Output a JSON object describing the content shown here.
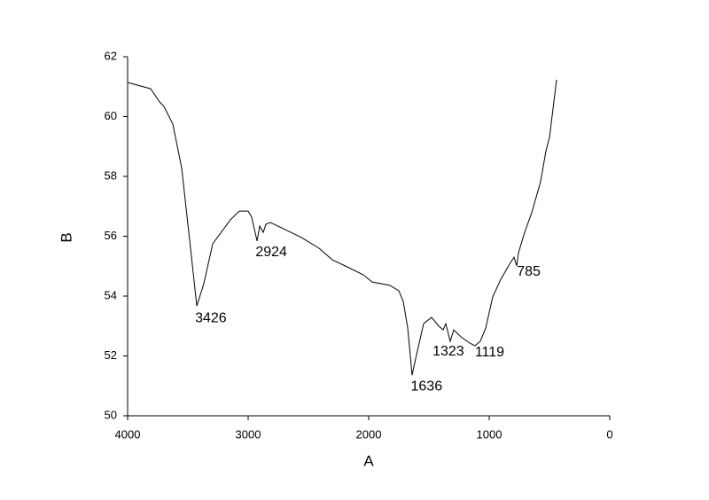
{
  "chart_data": {
    "type": "line",
    "x_label": "A",
    "y_label": "B",
    "xlim": [
      4000,
      0
    ],
    "xticks": [
      4000,
      3000,
      2000,
      1000,
      0
    ],
    "ylim": [
      50,
      62
    ],
    "yticks": [
      50,
      52,
      54,
      56,
      58,
      60,
      62
    ],
    "series": [
      {
        "color": "#000000",
        "x": [
          4000,
          3809,
          3735,
          3699,
          3625,
          3551,
          3478,
          3426,
          3368,
          3294,
          3147,
          3074,
          3000,
          2971,
          2926,
          2904,
          2875,
          2853,
          2816,
          2706,
          2559,
          2412,
          2301,
          2191,
          2044,
          1971,
          1824,
          1750,
          1713,
          1676,
          1640,
          1603,
          1544,
          1478,
          1419,
          1382,
          1360,
          1324,
          1294,
          1235,
          1162,
          1118,
          1074,
          1029,
          971,
          904,
          831,
          794,
          772,
          757,
          706,
          647,
          574,
          529,
          500,
          441
        ],
        "values": [
          61.14,
          60.93,
          60.49,
          60.34,
          59.75,
          58.27,
          55.6,
          53.67,
          54.41,
          55.75,
          56.55,
          56.84,
          56.84,
          56.64,
          55.84,
          56.34,
          56.13,
          56.4,
          56.46,
          56.25,
          55.96,
          55.6,
          55.21,
          55.0,
          54.71,
          54.47,
          54.36,
          54.18,
          53.82,
          52.93,
          51.36,
          52.04,
          53.08,
          53.29,
          53.0,
          52.87,
          53.08,
          52.49,
          52.87,
          52.64,
          52.43,
          52.34,
          52.49,
          52.93,
          53.97,
          54.56,
          55.07,
          55.3,
          55.01,
          55.45,
          56.13,
          56.79,
          57.82,
          58.86,
          59.3,
          61.23
        ]
      }
    ],
    "annotations": [
      {
        "label": "3426",
        "x": 3426,
        "y": 53.67
      },
      {
        "label": "2924",
        "x": 2924,
        "y": 55.84
      },
      {
        "label": "1636",
        "x": 1636,
        "y": 51.36
      },
      {
        "label": "1323",
        "x": 1323,
        "y": 52.49
      },
      {
        "label": "1119",
        "x": 1119,
        "y": 52.34
      },
      {
        "label": "785",
        "x": 785,
        "y": 55.01
      }
    ]
  }
}
